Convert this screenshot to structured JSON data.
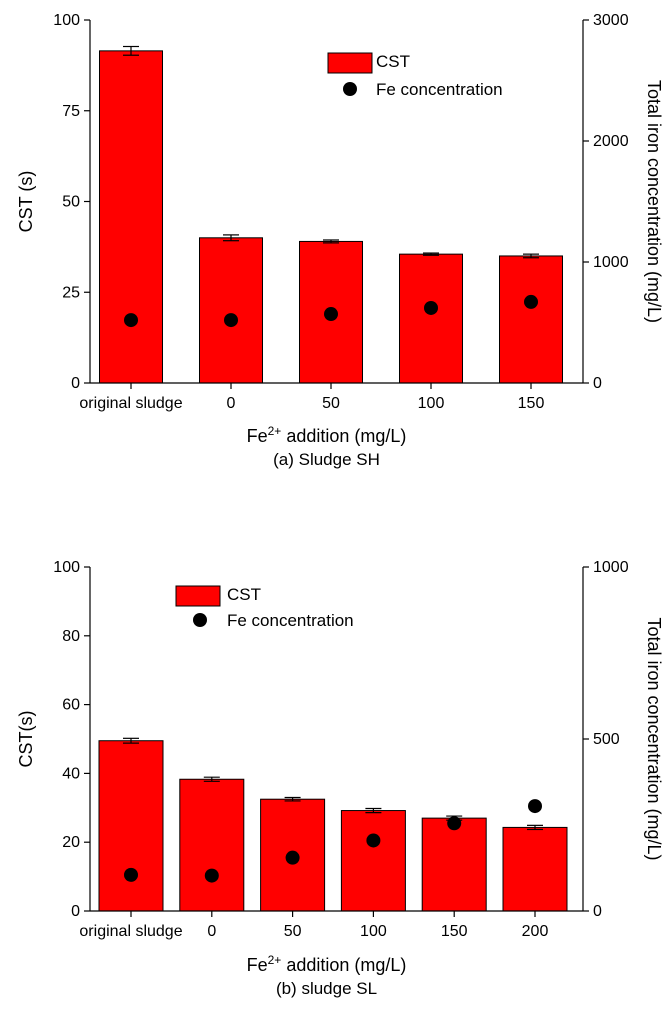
{
  "chart_data": [
    {
      "type": "bar",
      "caption": "(a) Sludge SH",
      "categories": [
        "original sludge",
        "0",
        "50",
        "100",
        "150"
      ],
      "xlabel_main": "Fe",
      "xlabel_sup": "2+",
      "xlabel_rest": " addition (mg/L)",
      "ylabel": "CST (s)",
      "y2label": "Total iron concentration (mg/L)",
      "ylim": [
        0,
        100
      ],
      "y2lim": [
        0,
        3000
      ],
      "yticks": [
        "0",
        "25",
        "50",
        "75",
        "100"
      ],
      "y2ticks": [
        "0",
        "1000",
        "2000",
        "3000"
      ],
      "yticks_values": [
        0,
        25,
        50,
        75,
        100
      ],
      "y2ticks_values": [
        0,
        1000,
        2000,
        3000
      ],
      "legend_position": "top-right",
      "series": [
        {
          "name": "CST",
          "kind": "bar",
          "axis": "left",
          "color": "#ff0000",
          "values": [
            91.5,
            40,
            39,
            35.5,
            35
          ],
          "errors": [
            1.2,
            0.8,
            0.4,
            0.3,
            0.5
          ]
        },
        {
          "name": "Fe concentration",
          "kind": "scatter",
          "axis": "right",
          "color": "#000000",
          "values": [
            520,
            520,
            570,
            620,
            670
          ]
        }
      ]
    },
    {
      "type": "bar",
      "caption": "(b) sludge SL",
      "categories": [
        "original sludge",
        "0",
        "50",
        "100",
        "150",
        "200"
      ],
      "xlabel_main": "Fe",
      "xlabel_sup": "2+",
      "xlabel_rest": " addition (mg/L)",
      "ylabel": "CST(s)",
      "y2label": "Total iron concentration (mg/L)",
      "ylim": [
        0,
        100
      ],
      "y2lim": [
        0,
        1000
      ],
      "yticks": [
        "0",
        "20",
        "40",
        "60",
        "80",
        "100"
      ],
      "y2ticks": [
        "0",
        "500",
        "1000"
      ],
      "yticks_values": [
        0,
        20,
        40,
        60,
        80,
        100
      ],
      "y2ticks_values": [
        0,
        500,
        1000
      ],
      "legend_position": "top-left",
      "series": [
        {
          "name": "CST",
          "kind": "bar",
          "axis": "left",
          "color": "#ff0000",
          "values": [
            49.5,
            38.3,
            32.5,
            29.2,
            27,
            24.3
          ],
          "errors": [
            0.7,
            0.6,
            0.5,
            0.6,
            0.6,
            0.6
          ]
        },
        {
          "name": "Fe concentration",
          "kind": "scatter",
          "axis": "right",
          "color": "#000000",
          "values": [
            105,
            103,
            155,
            205,
            255,
            305
          ]
        }
      ]
    }
  ]
}
